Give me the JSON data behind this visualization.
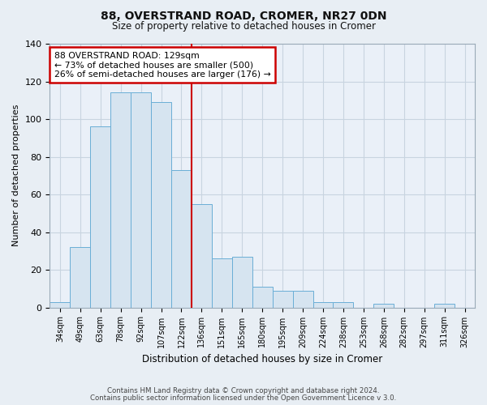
{
  "title1": "88, OVERSTRAND ROAD, CROMER, NR27 0DN",
  "title2": "Size of property relative to detached houses in Cromer",
  "xlabel": "Distribution of detached houses by size in Cromer",
  "ylabel": "Number of detached properties",
  "bar_labels": [
    "34sqm",
    "49sqm",
    "63sqm",
    "78sqm",
    "92sqm",
    "107sqm",
    "122sqm",
    "136sqm",
    "151sqm",
    "165sqm",
    "180sqm",
    "195sqm",
    "209sqm",
    "224sqm",
    "238sqm",
    "253sqm",
    "268sqm",
    "282sqm",
    "297sqm",
    "311sqm",
    "326sqm"
  ],
  "bar_values": [
    3,
    32,
    96,
    114,
    114,
    109,
    73,
    55,
    26,
    27,
    11,
    9,
    9,
    3,
    3,
    0,
    2,
    0,
    0,
    2,
    0
  ],
  "bar_color": "#d6e4f0",
  "bar_edge_color": "#6aaed6",
  "vline_x": 6.5,
  "vline_color": "#cc0000",
  "annotation_title": "88 OVERSTRAND ROAD: 129sqm",
  "annotation_line1": "← 73% of detached houses are smaller (500)",
  "annotation_line2": "26% of semi-detached houses are larger (176) →",
  "annotation_box_facecolor": "#ffffff",
  "annotation_box_edgecolor": "#cc0000",
  "ylim": [
    0,
    140
  ],
  "yticks": [
    0,
    20,
    40,
    60,
    80,
    100,
    120,
    140
  ],
  "footer1": "Contains HM Land Registry data © Crown copyright and database right 2024.",
  "footer2": "Contains public sector information licensed under the Open Government Licence v 3.0.",
  "fig_facecolor": "#e8eef4",
  "plot_facecolor": "#eaf0f8",
  "grid_color": "#c8d4e0"
}
